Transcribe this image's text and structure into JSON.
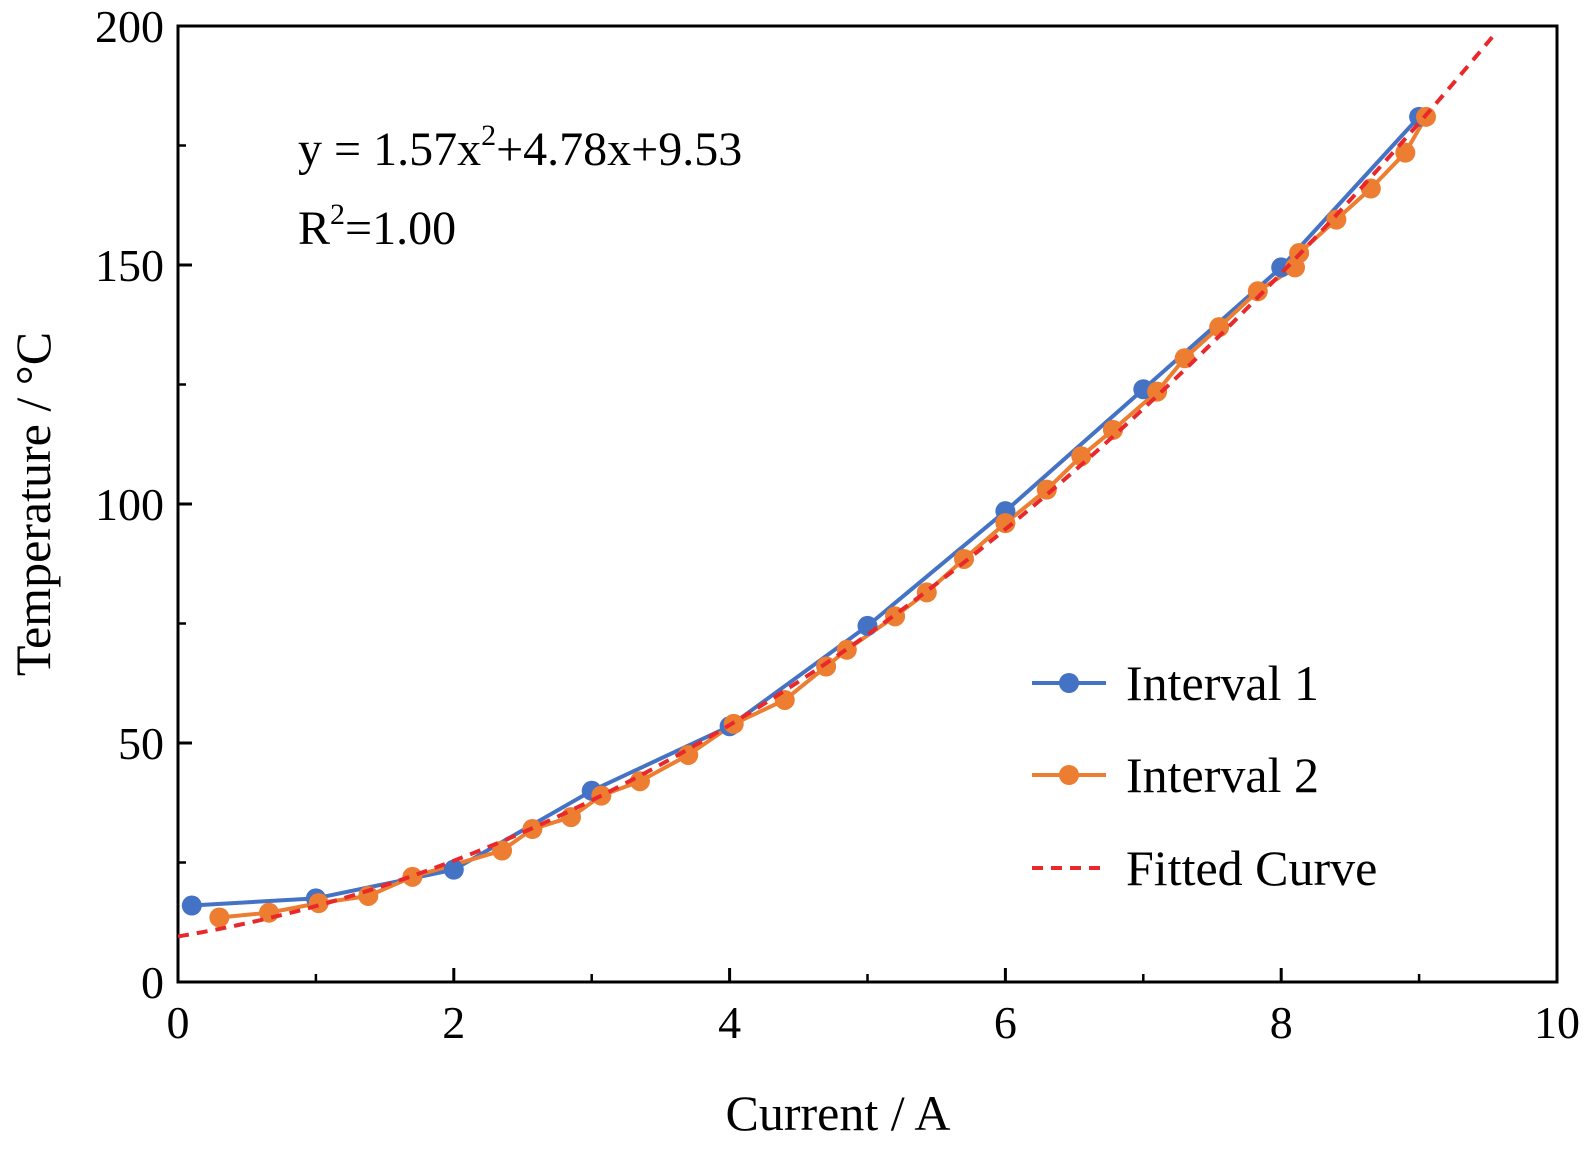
{
  "chart_data": {
    "type": "line",
    "xlabel": "Current / A",
    "ylabel": "Temperature / °C",
    "xlim": [
      0,
      10
    ],
    "ylim": [
      0,
      200
    ],
    "xticks": [
      0,
      2,
      4,
      6,
      8,
      10
    ],
    "yticks": [
      0,
      50,
      100,
      150,
      200
    ],
    "grid": false,
    "legend_position": "bottom-right",
    "annotation": {
      "equation_prefix": "y = 1.57x",
      "equation_exp": "2",
      "equation_suffix": "+4.78x+9.53",
      "r2_prefix": "R",
      "r2_exp": "2",
      "r2_suffix": "=1.00"
    },
    "series": [
      {
        "name": "Interval 1",
        "color": "#4472C4",
        "marker": "circle",
        "x": [
          0.1,
          1.0,
          2.0,
          3.0,
          4.0,
          5.0,
          6.0,
          7.0,
          8.0,
          9.0
        ],
        "y": [
          16.0,
          17.5,
          23.5,
          40.0,
          53.5,
          74.5,
          98.5,
          124.0,
          149.5,
          181.0
        ]
      },
      {
        "name": "Interval 2",
        "color": "#ED7D31",
        "marker": "circle",
        "x": [
          0.3,
          0.66,
          1.02,
          1.38,
          1.7,
          2.35,
          2.57,
          2.85,
          3.07,
          3.35,
          3.7,
          4.03,
          4.4,
          4.7,
          4.85,
          5.2,
          5.43,
          5.7,
          6.0,
          6.3,
          6.55,
          6.78,
          7.1,
          7.3,
          7.55,
          7.83,
          8.1,
          8.13,
          8.4,
          8.65,
          8.9,
          9.05
        ],
        "y": [
          13.5,
          14.5,
          16.5,
          18.0,
          22.0,
          27.5,
          32.0,
          34.5,
          39.0,
          42.0,
          47.5,
          54.0,
          59.0,
          66.0,
          69.5,
          76.5,
          81.5,
          88.5,
          96.0,
          103.0,
          110.0,
          115.5,
          123.5,
          130.5,
          137.0,
          144.5,
          149.5,
          152.5,
          159.5,
          166.0,
          173.5,
          181.0
        ]
      },
      {
        "name": "Fitted Curve",
        "color": "#E8282A",
        "style": "dashed",
        "equation": {
          "a": 1.57,
          "b": 4.78,
          "c": 9.53
        },
        "x_range": [
          0,
          9.55
        ]
      }
    ]
  }
}
